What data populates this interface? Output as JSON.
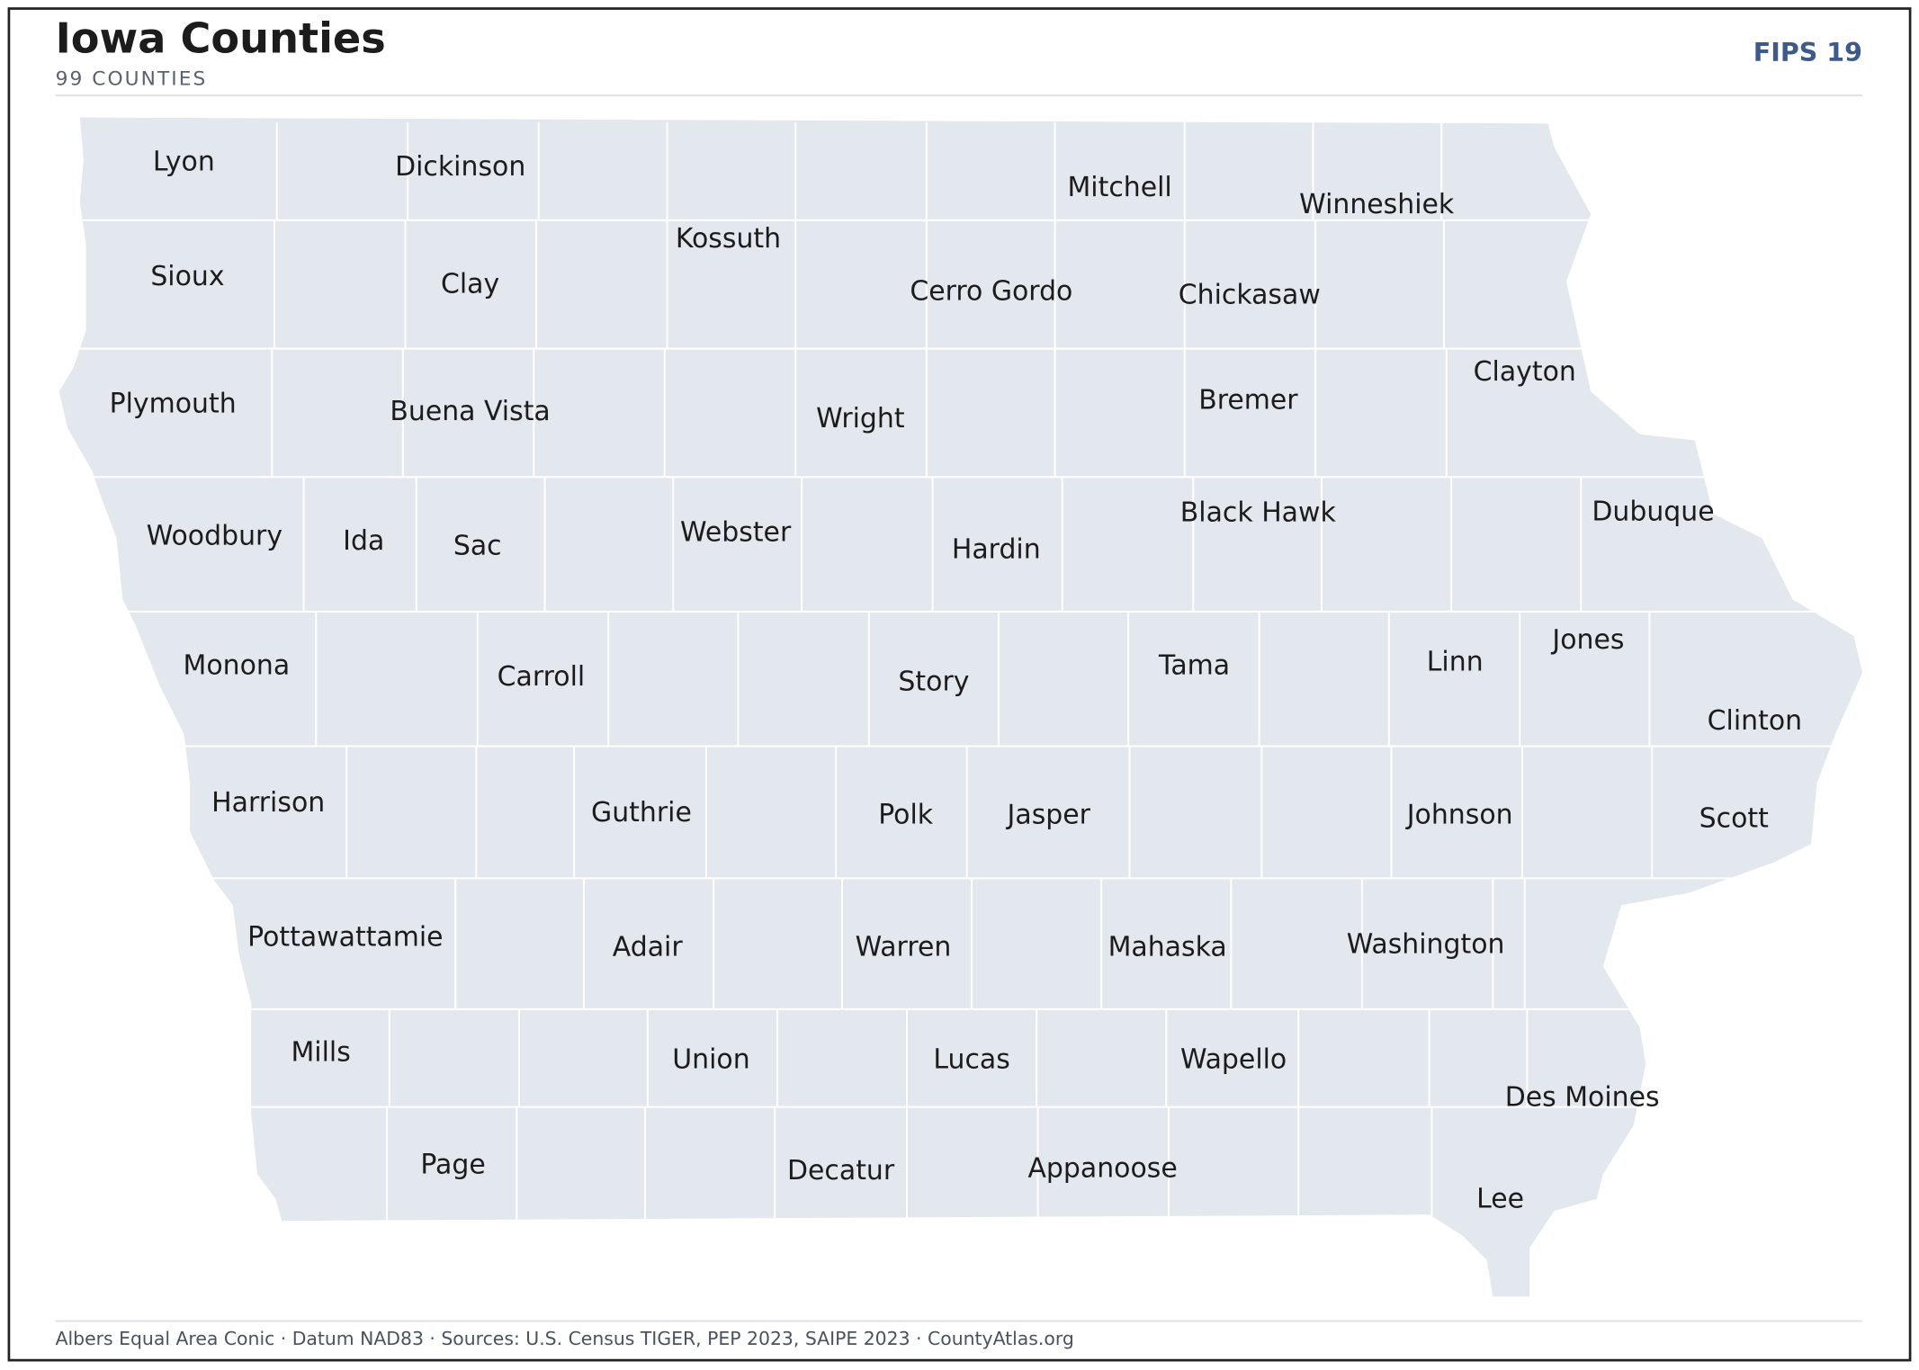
{
  "header": {
    "title": "Iowa Counties",
    "subtitle": "99 COUNTIES",
    "badge": "FIPS 19"
  },
  "map": {
    "county_labels": [
      "Lyon",
      "Dickinson",
      "Mitchell",
      "Winneshiek",
      "Kossuth",
      "Sioux",
      "Clay",
      "Cerro Gordo",
      "Chickasaw",
      "Clayton",
      "Plymouth",
      "Buena Vista",
      "Wright",
      "Bremer",
      "Woodbury",
      "Ida",
      "Sac",
      "Webster",
      "Hardin",
      "Black Hawk",
      "Dubuque",
      "Monona",
      "Carroll",
      "Story",
      "Tama",
      "Linn",
      "Jones",
      "Clinton",
      "Harrison",
      "Guthrie",
      "Polk",
      "Jasper",
      "Johnson",
      "Scott",
      "Pottawattamie",
      "Adair",
      "Warren",
      "Mahaska",
      "Washington",
      "Mills",
      "Union",
      "Lucas",
      "Wapello",
      "Des Moines",
      "Page",
      "Decatur",
      "Appanoose",
      "Lee"
    ]
  },
  "footer": {
    "text": "Albers Equal Area Conic · Datum NAD83 · Sources: U.S. Census TIGER, PEP 2023, SAIPE 2023 · CountyAtlas.org"
  }
}
